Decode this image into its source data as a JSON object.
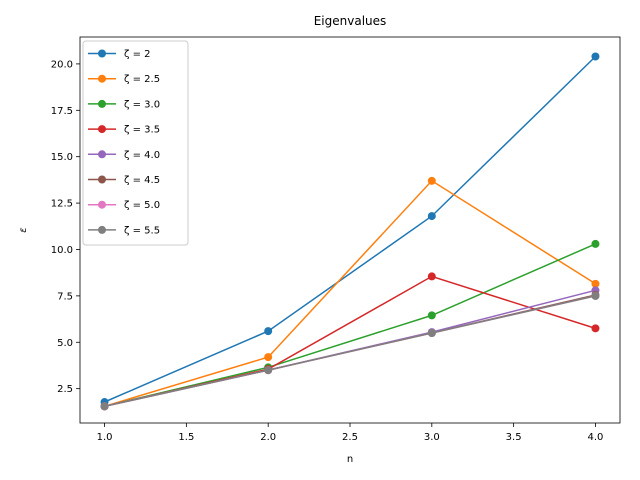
{
  "chart_data": {
    "type": "line",
    "title": "Eigenvalues",
    "xlabel": "n",
    "ylabel": "ε",
    "xlim": [
      0.85,
      4.15
    ],
    "ylim": [
      0.65,
      21.45
    ],
    "x": [
      1.0,
      2.0,
      3.0,
      4.0
    ],
    "xticks": [
      1.0,
      1.5,
      2.0,
      2.5,
      3.0,
      3.5,
      4.0
    ],
    "xtick_labels": [
      "1.0",
      "1.5",
      "2.0",
      "2.5",
      "3.0",
      "3.5",
      "4.0"
    ],
    "yticks": [
      2.5,
      5.0,
      7.5,
      10.0,
      12.5,
      15.0,
      17.5,
      20.0
    ],
    "ytick_labels": [
      "2.5",
      "5.0",
      "7.5",
      "10.0",
      "12.5",
      "15.0",
      "17.5",
      "20.0"
    ],
    "grid": false,
    "legend_position": "upper-left",
    "series": [
      {
        "name": "ζ = 2",
        "color": "#1f77b4",
        "values": [
          1.78,
          5.6,
          11.8,
          20.4
        ]
      },
      {
        "name": "ζ = 2.5",
        "color": "#ff7f0e",
        "values": [
          1.55,
          4.2,
          13.7,
          8.15
        ]
      },
      {
        "name": "ζ = 3.0",
        "color": "#2ca02c",
        "values": [
          1.55,
          3.65,
          6.45,
          10.3
        ]
      },
      {
        "name": "ζ = 3.5",
        "color": "#d62728",
        "values": [
          1.55,
          3.55,
          8.55,
          5.75
        ]
      },
      {
        "name": "ζ = 4.0",
        "color": "#9467bd",
        "values": [
          1.55,
          3.5,
          5.55,
          7.8
        ]
      },
      {
        "name": "ζ = 4.5",
        "color": "#8c564b",
        "values": [
          1.55,
          3.5,
          5.5,
          7.55
        ]
      },
      {
        "name": "ζ = 5.0",
        "color": "#e377c2",
        "values": [
          1.55,
          3.5,
          5.5,
          7.5
        ]
      },
      {
        "name": "ζ = 5.5",
        "color": "#7f7f7f",
        "values": [
          1.55,
          3.5,
          5.5,
          7.5
        ]
      }
    ]
  }
}
